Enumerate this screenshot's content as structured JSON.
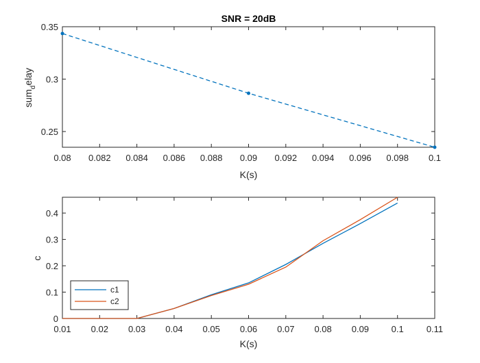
{
  "chart_data": [
    {
      "type": "line",
      "title": "SNR = 20dB",
      "xlabel": "K(s)",
      "ylabel_main": "sum",
      "ylabel_sub": "d",
      "ylabel_sup": "elay",
      "xlim": [
        0.08,
        0.1
      ],
      "ylim": [
        0.235,
        0.35
      ],
      "xticks": [
        0.08,
        0.082,
        0.084,
        0.086,
        0.088,
        0.09,
        0.092,
        0.094,
        0.096,
        0.098,
        0.1
      ],
      "xtick_labels": [
        "0.08",
        "0.082",
        "0.084",
        "0.086",
        "0.088",
        "0.09",
        "0.092",
        "0.094",
        "0.096",
        "0.098",
        "0.1"
      ],
      "yticks": [
        0.25,
        0.3,
        0.35
      ],
      "ytick_labels": [
        "0.25",
        "0.3",
        "0.35"
      ],
      "grid": false,
      "line_style": "dashed",
      "marker": "dot",
      "color": "#0072BD",
      "series": [
        {
          "x": [
            0.08,
            0.09,
            0.1
          ],
          "y": [
            0.3435,
            0.2865,
            0.235
          ]
        }
      ]
    },
    {
      "type": "line",
      "title": "",
      "xlabel": "K(s)",
      "ylabel": "c",
      "xlim": [
        0.01,
        0.11
      ],
      "ylim": [
        0,
        0.46
      ],
      "xticks": [
        0.01,
        0.02,
        0.03,
        0.04,
        0.05,
        0.06,
        0.07,
        0.08,
        0.09,
        0.1,
        0.11
      ],
      "xtick_labels": [
        "0.01",
        "0.02",
        "0.03",
        "0.04",
        "0.05",
        "0.06",
        "0.07",
        "0.08",
        "0.09",
        "0.1",
        "0.11"
      ],
      "yticks": [
        0,
        0.1,
        0.2,
        0.3,
        0.4
      ],
      "ytick_labels": [
        "0",
        "0.1",
        "0.2",
        "0.3",
        "0.4"
      ],
      "grid": false,
      "legend_position": "bottom-left",
      "series": [
        {
          "name": "c1",
          "color": "#0072BD",
          "x": [
            0.01,
            0.02,
            0.03,
            0.04,
            0.05,
            0.06,
            0.07,
            0.08,
            0.09,
            0.1
          ],
          "y": [
            0,
            0,
            0,
            0.038,
            0.09,
            0.135,
            0.205,
            0.285,
            0.36,
            0.438
          ]
        },
        {
          "name": "c2",
          "color": "#D95319",
          "x": [
            0.01,
            0.02,
            0.03,
            0.04,
            0.05,
            0.06,
            0.07,
            0.08,
            0.09,
            0.1
          ],
          "y": [
            0,
            0,
            0,
            0.038,
            0.087,
            0.13,
            0.195,
            0.295,
            0.375,
            0.46
          ]
        }
      ]
    }
  ]
}
